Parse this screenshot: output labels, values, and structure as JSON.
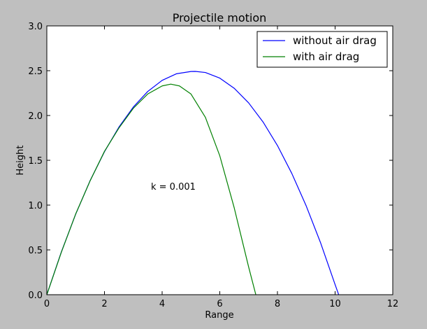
{
  "chart_data": {
    "type": "line",
    "title": "Projectile motion",
    "xlabel": "Range",
    "ylabel": "Height",
    "xlim": [
      0,
      12
    ],
    "ylim": [
      0,
      3.0
    ],
    "x_ticks": [
      "0",
      "2",
      "4",
      "6",
      "8",
      "10",
      "12"
    ],
    "y_ticks": [
      "0.0",
      "0.5",
      "1.0",
      "1.5",
      "2.0",
      "2.5",
      "3.0"
    ],
    "grid": false,
    "legend_position": "top-right",
    "annotation": "k = 0.001",
    "series": [
      {
        "name": "without air drag",
        "color": "#0000ff",
        "x": [
          0,
          0.5,
          1.0,
          1.5,
          2.0,
          2.5,
          3.0,
          3.5,
          4.0,
          4.5,
          5.0,
          5.15,
          5.5,
          6.0,
          6.5,
          7.0,
          7.5,
          8.0,
          8.5,
          9.0,
          9.5,
          10.0,
          10.3
        ],
        "y": [
          0.0,
          0.474,
          0.898,
          1.272,
          1.596,
          1.87,
          2.094,
          2.268,
          2.392,
          2.466,
          2.491,
          2.492,
          2.48,
          2.417,
          2.304,
          2.141,
          1.928,
          1.665,
          1.352,
          0.989,
          0.576,
          0.113,
          -0.158
        ]
      },
      {
        "name": "with air drag",
        "color": "#008000",
        "x": [
          0,
          0.5,
          1.0,
          1.5,
          2.0,
          2.5,
          3.0,
          3.5,
          4.0,
          4.3,
          4.6,
          5.0,
          5.5,
          6.0,
          6.5,
          7.0,
          7.25
        ],
        "y": [
          0.0,
          0.47,
          0.9,
          1.27,
          1.6,
          1.86,
          2.08,
          2.24,
          2.33,
          2.35,
          2.33,
          2.24,
          1.98,
          1.55,
          0.97,
          0.31,
          0.0
        ]
      }
    ]
  }
}
